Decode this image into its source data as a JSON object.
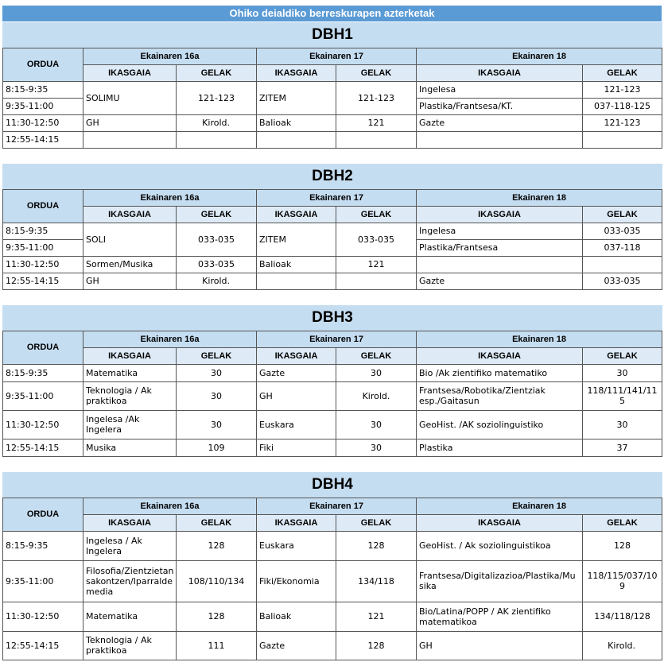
{
  "banner": "Ohiko deialdiko berreskurapen azterketak",
  "headers": {
    "ordua": "ORDUA",
    "ikasgaia": "IKASGAIA",
    "gelak": "GELAK",
    "day1": "Ekainaren 16a",
    "day2": "Ekainaren 17",
    "day3": "Ekainaren 18"
  },
  "dbh1": {
    "title": "DBH1",
    "times": [
      "8:15-9:35",
      "9:35-11:00",
      "11:30-12:50",
      "12:55-14:15"
    ],
    "d1": [
      {
        "s": "SOLIMU",
        "g": "121-123"
      },
      {
        "s": "GH",
        "g": "Kirold."
      },
      {
        "s": "",
        "g": ""
      }
    ],
    "d2": [
      {
        "s": "ZITEM",
        "g": "121-123"
      },
      {
        "s": "Balioak",
        "g": "121"
      },
      {
        "s": "",
        "g": ""
      }
    ],
    "d3": [
      {
        "s": "Ingelesa",
        "g": "121-123"
      },
      {
        "s": "Plastika/Frantsesa/KT.",
        "g": "037-118-125"
      },
      {
        "s": "Gazte",
        "g": "121-123"
      },
      {
        "s": "",
        "g": ""
      }
    ]
  },
  "dbh2": {
    "title": "DBH2",
    "times": [
      "8:15-9:35",
      "9:35-11:00",
      "11:30-12:50",
      "12:55-14:15"
    ],
    "d1": [
      {
        "s": "SOLI",
        "g": "033-035"
      },
      {
        "s": "Sormen/Musika",
        "g": "033-035"
      },
      {
        "s": "GH",
        "g": "Kirold."
      }
    ],
    "d2": [
      {
        "s": "ZITEM",
        "g": "033-035"
      },
      {
        "s": "Balioak",
        "g": "121"
      },
      {
        "s": "",
        "g": ""
      }
    ],
    "d3": [
      {
        "s": "Ingelesa",
        "g": "033-035"
      },
      {
        "s": "Plastika/Frantsesa",
        "g": "037-118"
      },
      {
        "s": "",
        "g": ""
      },
      {
        "s": "Gazte",
        "g": "033-035"
      }
    ]
  },
  "dbh3": {
    "title": "DBH3",
    "rows": [
      {
        "t": "8:15-9:35",
        "s1": "Matematika",
        "g1": "30",
        "s2": "Gazte",
        "g2": "30",
        "s3": "Bio /Ak zientifiko matematiko",
        "g3": "30"
      },
      {
        "t": "9:35-11:00",
        "s1": "Teknologia / Ak praktikoa",
        "g1": "30",
        "s2": "GH",
        "g2": "Kirold.",
        "s3": "Frantsesa/Robotika/Zientziak esp./Gaitasun",
        "g3": "118/111/141/115"
      },
      {
        "t": "11:30-12:50",
        "s1": "Ingelesa /Ak Ingelera",
        "g1": "30",
        "s2": "Euskara",
        "g2": "30",
        "s3": "GeoHist. /AK soziolinguistiko",
        "g3": "30"
      },
      {
        "t": "12:55-14:15",
        "s1": "Musika",
        "g1": "109",
        "s2": "Fiki",
        "g2": "30",
        "s3": "Plastika",
        "g3": "37"
      }
    ]
  },
  "dbh4": {
    "title": "DBH4",
    "rows": [
      {
        "t": "8:15-9:35",
        "s1": "Ingelesa / Ak Ingelera",
        "g1": "128",
        "s2": "Euskara",
        "g2": "128",
        "s3": "GeoHist. / Ak soziolinguistikoa",
        "g3": "128"
      },
      {
        "t": "9:35-11:00",
        "s1": "Filosofia/Zientzietan sakontzen/Iparralde media",
        "g1": "108/110/134",
        "s2": "Fiki/Ekonomia",
        "g2": "134/118",
        "s3": "Frantsesa/Digitalizazioa/Plastika/Musika",
        "g3": "118/115/037/109"
      },
      {
        "t": "11:30-12:50",
        "s1": "Matematika",
        "g1": "128",
        "s2": "Balioak",
        "g2": "121",
        "s3": "Bio/Latina/POPP / AK zientifiko matematikoa",
        "g3": "134/118/128"
      },
      {
        "t": "12:55-14:15",
        "s1": "Teknologia / Ak praktikoa",
        "g1": "111",
        "s2": "Gazte",
        "g2": "128",
        "s3": "GH",
        "g3": "Kirold."
      }
    ]
  }
}
